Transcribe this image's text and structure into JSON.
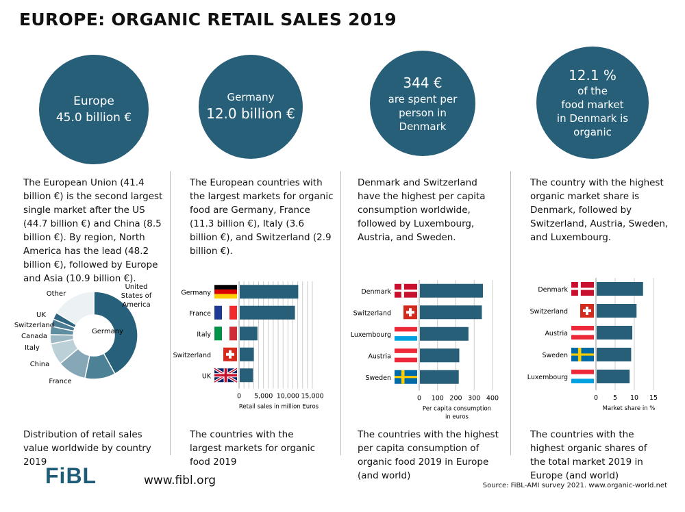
{
  "title": "EUROPE: ORGANIC RETAIL SALES 2019",
  "colors": {
    "accent": "#275f78",
    "grid": "#cccccc"
  },
  "columns": [
    {
      "circle": [
        "Europe",
        "45.0 billion €"
      ],
      "text": "The European Union (41.4 billion €) is the second largest single market after the US (44.7 billion €) and China (8.5 billion €). By region, North America has the lead (48.2 billion €), followed by Europe and Asia (10.9 billion €).",
      "caption": "Distribution of retail sales value worldwide by country 2019"
    },
    {
      "circle": [
        "Germany",
        "12.0 billion €"
      ],
      "text": "The European countries with the largest markets for organic food are Germany, France (11.3 billion €), Italy (3.6 billion €), and Switzerland (2.9 billion €).",
      "caption": "The countries with the largest markets for organic food 2019"
    },
    {
      "circle": [
        "344 €",
        "are spent per",
        "person in",
        "Denmark"
      ],
      "text": "Denmark and Switzerland have the highest per capita consumption worldwide, followed by Luxembourg, Austria, and Sweden.",
      "caption": "The countries with the highest per capita consumption of organic food 2019 in Europe (and world)"
    },
    {
      "circle": [
        "12.1 %",
        "of the",
        "food market",
        "in Denmark is",
        "organic"
      ],
      "text": "The country with the highest organic market share is Denmark, followed by Switzerland, Austria, Sweden, and Luxembourg.",
      "caption": "The countries with the highest organic shares of the total market 2019 in Europe (and world)"
    }
  ],
  "chart_data": [
    {
      "type": "pie",
      "title": "Distribution of retail sales value worldwide by country 2019",
      "categories": [
        "United States of America",
        "Germany",
        "France",
        "China",
        "Italy",
        "Canada",
        "Switzerland",
        "UK",
        "Other"
      ],
      "values": [
        44.7,
        12.0,
        11.3,
        8.5,
        3.6,
        3.3,
        2.9,
        2.7,
        17.4
      ],
      "colors": [
        "#27607a",
        "#4d8196",
        "#86a8b6",
        "#bcd0d8",
        "#9cb8c4",
        "#5f8ea1",
        "#4a7d93",
        "#2f6780",
        "#ecf2f4"
      ],
      "unit": "billion €"
    },
    {
      "type": "bar",
      "categories": [
        "Germany",
        "France",
        "Italy",
        "Switzerland",
        "UK"
      ],
      "flags": [
        "de",
        "fr",
        "it",
        "ch",
        "uk"
      ],
      "values": [
        11970,
        11295,
        3625,
        2875,
        2710
      ],
      "xlim": [
        0,
        15000
      ],
      "ticks": [
        "0",
        "5,000",
        "10,000",
        "15,000"
      ],
      "tickvals": [
        0,
        5000,
        10000,
        15000
      ],
      "gridstep": 1000,
      "xlabel": [
        "Retail sales in million Euros"
      ]
    },
    {
      "type": "bar",
      "categories": [
        "Denmark",
        "Switzerland",
        "Luxembourg",
        "Austria",
        "Sweden"
      ],
      "flags": [
        "dk",
        "ch",
        "lu",
        "at",
        "se"
      ],
      "values": [
        344,
        338,
        265,
        215,
        212
      ],
      "xlim": [
        0,
        400
      ],
      "ticks": [
        "0",
        "100",
        "200",
        "300",
        "400"
      ],
      "tickvals": [
        0,
        100,
        200,
        300,
        400
      ],
      "gridstep": 100,
      "xlabel": [
        "Per capita consumption",
        "in euros"
      ]
    },
    {
      "type": "bar",
      "categories": [
        "Denmark",
        "Switzerland",
        "Austria",
        "Sweden",
        "Luxembourg"
      ],
      "flags": [
        "dk",
        "ch",
        "at",
        "se",
        "lu"
      ],
      "values": [
        12.1,
        10.4,
        9.3,
        9.0,
        8.6
      ],
      "xlim": [
        0,
        15
      ],
      "ticks": [
        "0",
        "5",
        "10",
        "15"
      ],
      "tickvals": [
        0,
        5,
        10,
        15
      ],
      "gridstep": 5,
      "xlabel": [
        "Market share in %"
      ]
    }
  ],
  "footer": {
    "logo": "FiBL",
    "url": "www.fibl.org",
    "source": "Source: FiBL-AMI survey 2021. www.organic-world.net"
  }
}
